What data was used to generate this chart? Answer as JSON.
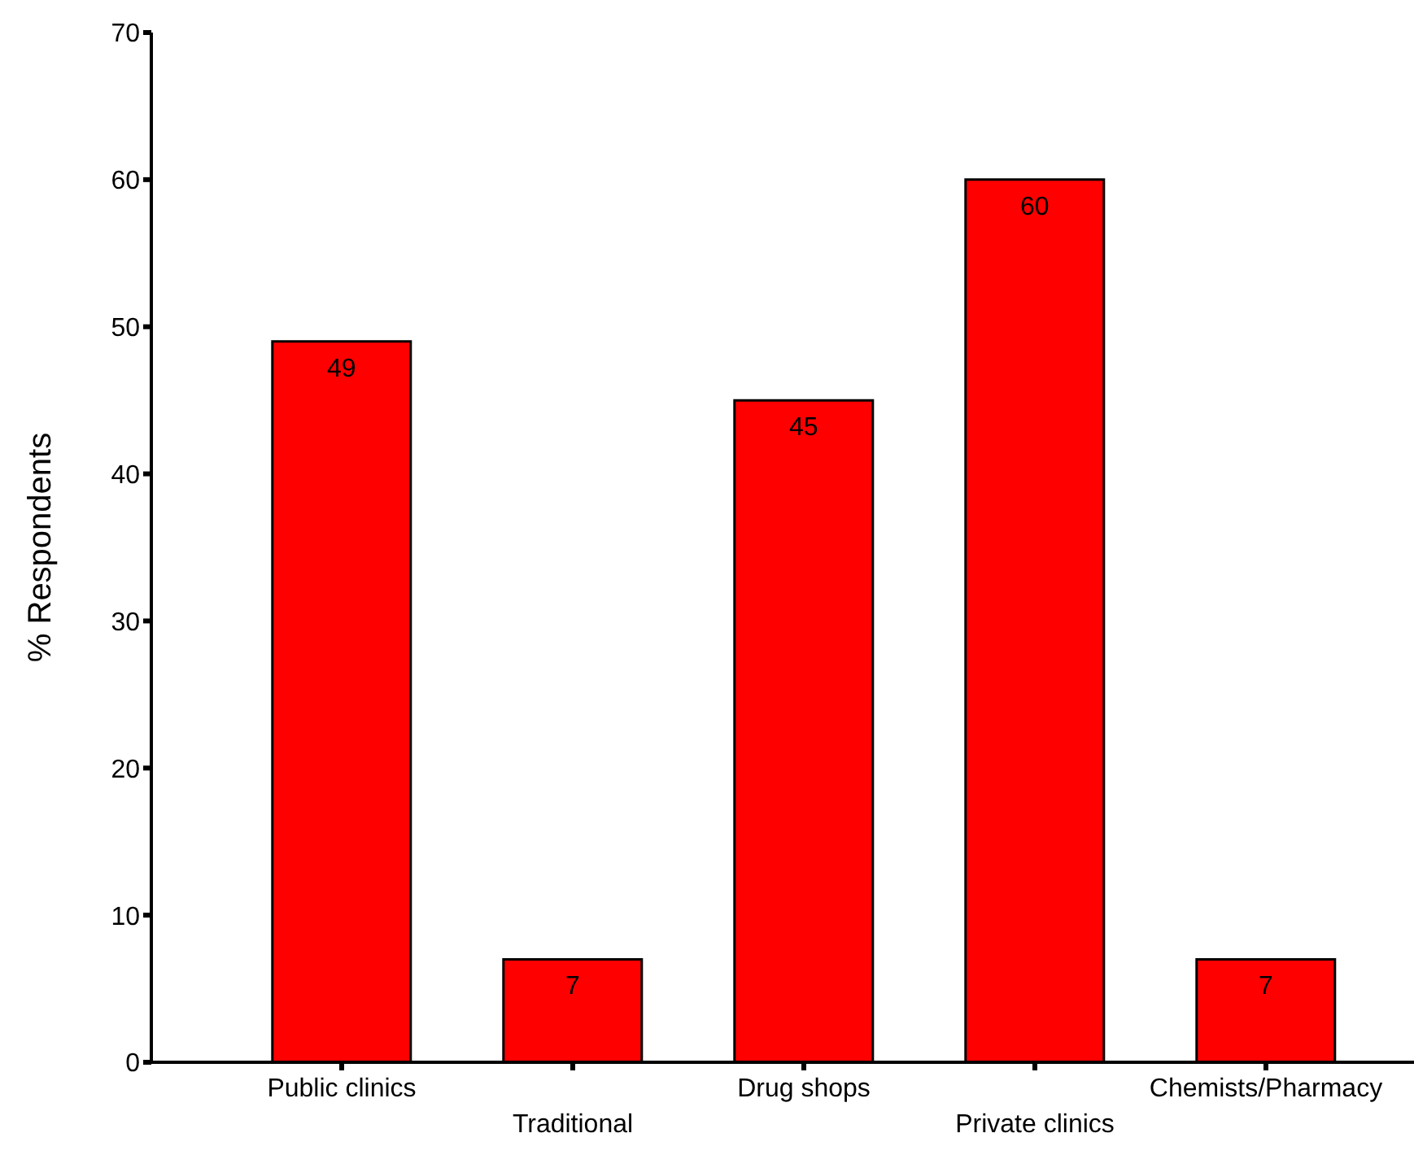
{
  "chart_data": {
    "type": "bar",
    "ylabel": "% Respondents",
    "categories": [
      "Public clinics",
      "Traditional",
      "Drug shops",
      "Private clinics",
      "Chemists/Pharmacy"
    ],
    "values": [
      49,
      7,
      45,
      60,
      7
    ],
    "color": "#ff0000",
    "ylim": [
      0,
      70
    ],
    "yticks": [
      0,
      10,
      20,
      30,
      40,
      50,
      60,
      70
    ],
    "data_labels": true,
    "grid": false
  }
}
